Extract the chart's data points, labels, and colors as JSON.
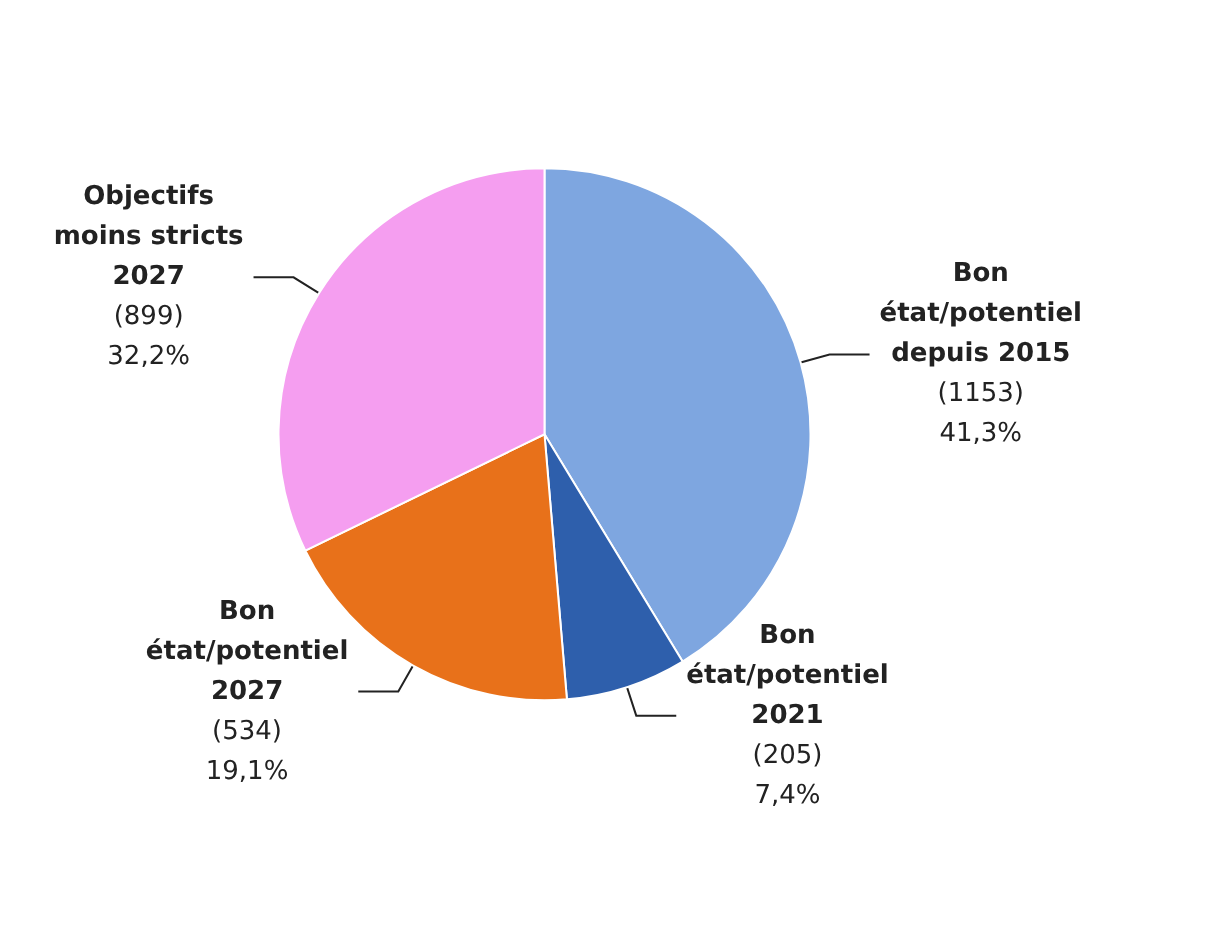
{
  "chart_data": {
    "type": "pie",
    "categories": [
      "Bon état/potentiel depuis 2015",
      "Bon état/potentiel 2021",
      "Bon état/potentiel 2027",
      "Objectifs moins stricts 2027"
    ],
    "values": [
      1153,
      205,
      534,
      899
    ],
    "colors": [
      "#7ea6e0",
      "#2e5fac",
      "#e8711a",
      "#f59ef0"
    ],
    "value_labels": [
      "(1153)\n41,3%",
      "(205)\n7,4%",
      "(534)\n19,1%",
      "(899)\n32,2%"
    ],
    "legend": false
  }
}
